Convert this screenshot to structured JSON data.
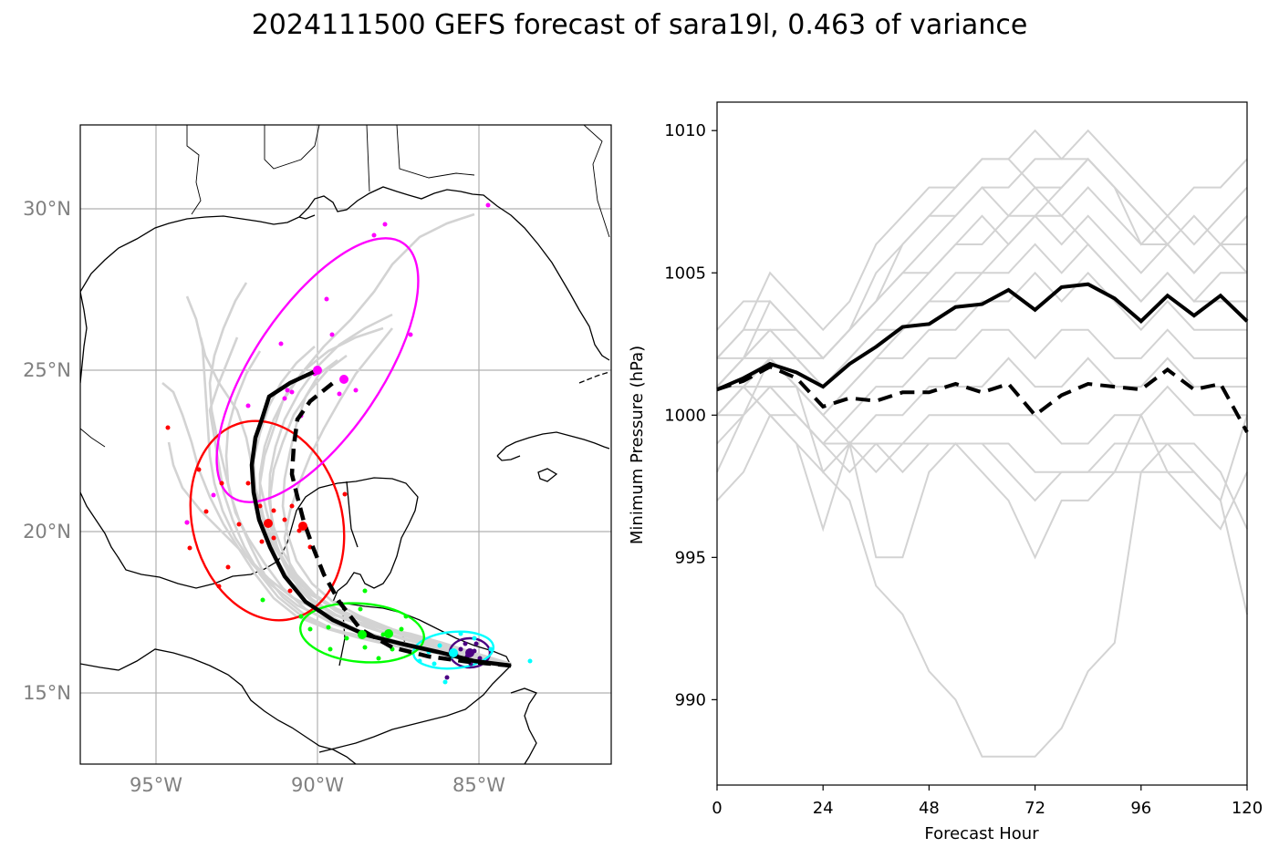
{
  "title": "2024111500 GEFS forecast of sara19l, 0.463 of variance",
  "map": {
    "lon_labels": [
      "95°W",
      "90°W",
      "85°W"
    ],
    "lat_labels": [
      "30°N",
      "25°N",
      "20°N",
      "15°N"
    ]
  },
  "colors": {
    "ensemble": "#d3d3d3",
    "mean": "#000000",
    "ellipse_day1": "#4b0082",
    "ellipse_day2": "#00ffff",
    "ellipse_day3": "#00ff00",
    "ellipse_day4": "#ff0000",
    "ellipse_day5": "#ff00ff"
  },
  "chart_data": {
    "type": "line",
    "xlabel": "Forecast Hour",
    "ylabel": "Minimum Pressure (hPa)",
    "xlim": [
      0,
      120
    ],
    "ylim": [
      987,
      1011
    ],
    "x_ticks": [
      0,
      24,
      48,
      72,
      96,
      120
    ],
    "y_ticks": [
      990,
      995,
      1000,
      1005,
      1010
    ],
    "grid": false,
    "x": [
      0,
      6,
      12,
      18,
      24,
      30,
      36,
      42,
      48,
      54,
      60,
      66,
      72,
      78,
      84,
      90,
      96,
      102,
      108,
      114,
      120
    ],
    "series": [
      {
        "style": "solid-black",
        "values": [
          1000.9,
          1001.3,
          1001.8,
          1001.5,
          1001.0,
          1001.8,
          1002.4,
          1003.1,
          1003.2,
          1003.8,
          1003.9,
          1004.4,
          1003.7,
          1004.5,
          1004.6,
          1004.1,
          1003.3,
          1004.2,
          1003.5,
          1004.2,
          1003.3
        ]
      },
      {
        "style": "dashed-black",
        "values": [
          1000.9,
          1001.2,
          1001.7,
          1001.3,
          1000.3,
          1000.6,
          1000.5,
          1000.8,
          1000.8,
          1001.1,
          1000.8,
          1001.1,
          1000.0,
          1000.7,
          1001.1,
          1001.0,
          1000.9,
          1001.6,
          1000.9,
          1001.1,
          999.4
        ]
      },
      {
        "style": "ensemble",
        "values": [
          1003,
          1004,
          1004,
          1003,
          1002,
          1003,
          1004,
          1005,
          1006,
          1007,
          1008,
          1008,
          1009,
          1009,
          1010,
          1009,
          1008,
          1007,
          1008,
          1008,
          1009
        ]
      },
      {
        "style": "ensemble",
        "values": [
          1002,
          1003,
          1005,
          1004,
          1003,
          1004,
          1006,
          1007,
          1008,
          1008,
          1009,
          1009,
          1008,
          1008,
          1009,
          1008,
          1006,
          1007,
          1006,
          1007,
          1008
        ]
      },
      {
        "style": "ensemble",
        "values": [
          1001,
          1002,
          1004,
          1003,
          1002,
          1003,
          1005,
          1006,
          1007,
          1007,
          1008,
          1007,
          1008,
          1007,
          1008,
          1007,
          1006,
          1006,
          1005,
          1006,
          1007
        ]
      },
      {
        "style": "ensemble",
        "values": [
          1002,
          1003,
          1003,
          1002,
          1001,
          1002,
          1003,
          1004,
          1005,
          1006,
          1006,
          1007,
          1007,
          1006,
          1007,
          1006,
          1005,
          1006,
          1005,
          1006,
          1006
        ]
      },
      {
        "style": "ensemble",
        "values": [
          1001,
          1002,
          1003,
          1002,
          1002,
          1003,
          1004,
          1005,
          1005,
          1006,
          1007,
          1006,
          1007,
          1007,
          1006,
          1005,
          1004,
          1005,
          1004,
          1005,
          1005
        ]
      },
      {
        "style": "ensemble",
        "values": [
          1000,
          1001,
          1002,
          1002,
          1001,
          1002,
          1003,
          1003,
          1004,
          1004,
          1005,
          1005,
          1006,
          1005,
          1006,
          1005,
          1004,
          1005,
          1004,
          1004,
          1004
        ]
      },
      {
        "style": "ensemble",
        "values": [
          1001,
          1001,
          1002,
          1001,
          1000,
          1001,
          1002,
          1002,
          1003,
          1003,
          1004,
          1004,
          1005,
          1004,
          1005,
          1004,
          1003,
          1004,
          1003,
          1003,
          1003
        ]
      },
      {
        "style": "ensemble",
        "values": [
          1000,
          1001,
          1001,
          1000,
          999,
          1000,
          1001,
          1001,
          1002,
          1002,
          1003,
          1003,
          1002,
          1003,
          1003,
          1002,
          1002,
          1003,
          1002,
          1002,
          1002
        ]
      },
      {
        "style": "ensemble",
        "values": [
          999,
          1000,
          1001,
          1000,
          999,
          999,
          1000,
          1000,
          1001,
          1001,
          1001,
          1002,
          1001,
          1001,
          1002,
          1001,
          1001,
          1002,
          1001,
          1001,
          1001
        ]
      },
      {
        "style": "ensemble",
        "values": [
          1000,
          1000,
          1001,
          1001,
          998,
          999,
          998,
          999,
          1000,
          1000,
          1000,
          1000,
          1000,
          999,
          999,
          1000,
          1000,
          1001,
          1000,
          1000,
          1000
        ]
      },
      {
        "style": "ensemble",
        "values": [
          998,
          1000,
          1002,
          1001,
          1000,
          999,
          999,
          998,
          999,
          999,
          999,
          999,
          998,
          998,
          998,
          999,
          999,
          999,
          998,
          997,
          1000
        ]
      },
      {
        "style": "ensemble",
        "values": [
          997,
          998,
          1000,
          999,
          996,
          999,
          995,
          995,
          998,
          999,
          998,
          997,
          995,
          997,
          997,
          998,
          1000,
          998,
          997,
          996,
          998
        ]
      },
      {
        "style": "ensemble",
        "values": [
          1000,
          1001,
          1000,
          999,
          998,
          997,
          994,
          993,
          991,
          990,
          988,
          988,
          988,
          989,
          991,
          992,
          998,
          999,
          999,
          998,
          996
        ]
      },
      {
        "style": "ensemble",
        "values": [
          1001,
          1001,
          1000,
          1000,
          999,
          998,
          999,
          999,
          999,
          999,
          999,
          998,
          997,
          998,
          998,
          998,
          998,
          998,
          998,
          997,
          993
        ]
      },
      {
        "style": "ensemble",
        "values": [
          1002,
          1002,
          1002,
          1001,
          1000,
          1001,
          1002,
          1003,
          1004,
          1005,
          1005,
          1006,
          1007,
          1008,
          1009,
          1008,
          1007,
          1006,
          1007,
          1006,
          1005
        ]
      },
      {
        "style": "ensemble",
        "values": [
          1001,
          1002,
          1003,
          1003,
          1002,
          1003,
          1004,
          1006,
          1007,
          1008,
          1009,
          1009,
          1010,
          1009,
          1009,
          1008,
          1007,
          1006,
          1005,
          1006,
          1007
        ]
      }
    ]
  }
}
